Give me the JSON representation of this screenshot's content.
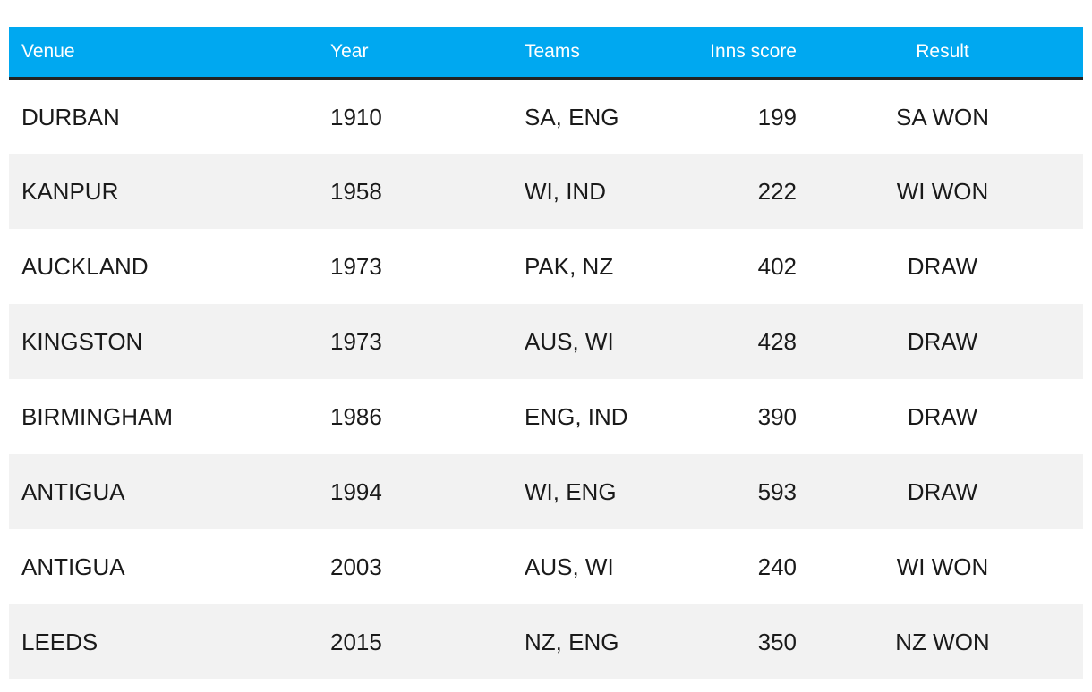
{
  "table": {
    "headers": {
      "venue": "Venue",
      "year": "Year",
      "teams": "Teams",
      "score": "Inns score",
      "result": "Result"
    },
    "rows": [
      {
        "venue": "DURBAN",
        "year": "1910",
        "teams": "SA, ENG",
        "score": "199",
        "result": "SA WON"
      },
      {
        "venue": "KANPUR",
        "year": "1958",
        "teams": "WI, IND",
        "score": "222",
        "result": "WI WON"
      },
      {
        "venue": "AUCKLAND",
        "year": "1973",
        "teams": "PAK, NZ",
        "score": "402",
        "result": "DRAW"
      },
      {
        "venue": "KINGSTON",
        "year": "1973",
        "teams": "AUS, WI",
        "score": "428",
        "result": "DRAW"
      },
      {
        "venue": "BIRMINGHAM",
        "year": "1986",
        "teams": "ENG, IND",
        "score": "390",
        "result": "DRAW"
      },
      {
        "venue": "ANTIGUA",
        "year": "1994",
        "teams": "WI, ENG",
        "score": "593",
        "result": "DRAW"
      },
      {
        "venue": "ANTIGUA",
        "year": "2003",
        "teams": "AUS, WI",
        "score": "240",
        "result": "WI WON"
      },
      {
        "venue": "LEEDS",
        "year": "2015",
        "teams": "NZ, ENG",
        "score": "350",
        "result": "NZ WON"
      }
    ]
  },
  "colors": {
    "header_bg": "#00a8f0",
    "header_text": "#ffffff",
    "stripe_bg": "#f2f2f2",
    "header_border": "#222222"
  }
}
